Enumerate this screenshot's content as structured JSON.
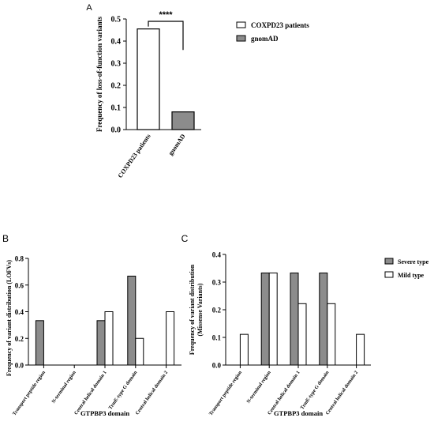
{
  "colors": {
    "gray": "#8c8c8c",
    "white": "#ffffff",
    "ink": "#000000"
  },
  "chart_data": [
    {
      "panel": "A",
      "type": "bar",
      "categories": [
        "COXPD23 patients",
        "gnomAD"
      ],
      "values": [
        0.455,
        0.08
      ],
      "bar_colors": [
        "white",
        "gray"
      ],
      "ylabel": "Frequency of loss-of-function variants",
      "xlabel": "",
      "ylim": [
        0,
        0.5
      ],
      "yticks": [
        "0.0",
        "0.1",
        "0.2",
        "0.3",
        "0.4",
        "0.5"
      ],
      "significance": "****",
      "legend": {
        "placement": "right",
        "entries": [
          {
            "name": "COXPD23 patients",
            "color": "white"
          },
          {
            "name": "gnomAD",
            "color": "gray"
          }
        ]
      }
    },
    {
      "panel": "B",
      "type": "bar",
      "categories": [
        "Transport peptide region",
        "N-terminal region",
        "Central helical domain 1",
        "TrmE-type G domain",
        "Central helical domain 2"
      ],
      "series": [
        {
          "values": [
            0.333,
            0,
            0.333,
            0.667,
            0
          ],
          "color": "gray"
        },
        {
          "values": [
            0,
            0,
            0.4,
            0.2,
            0.4
          ],
          "color": "white"
        }
      ],
      "xlabel": "GTPBP3 domain",
      "ylabel": "Frequency of variant distribution (LOFVs)",
      "ylim": [
        0,
        0.8
      ],
      "yticks": [
        "0.0",
        "0.2",
        "0.4",
        "0.6",
        "0.8"
      ]
    },
    {
      "panel": "C",
      "type": "bar",
      "categories": [
        "Transport peptide region",
        "N-terminal region",
        "Central helical domain 1",
        "TrmE-type G domain",
        "Central helical domain 2"
      ],
      "series": [
        {
          "name": "Severe type",
          "values": [
            0,
            0.333,
            0.333,
            0.333,
            0
          ],
          "color": "gray"
        },
        {
          "name": "Mild type",
          "values": [
            0.111,
            0.333,
            0.222,
            0.222,
            0.111
          ],
          "color": "white"
        }
      ],
      "xlabel": "GTPBP3 domain",
      "ylabel": "Frequency of variant distribution",
      "ylabel2": "(Missense Variants)",
      "ylim": [
        0,
        0.4
      ],
      "yticks": [
        "0.0",
        "0.1",
        "0.2",
        "0.3",
        "0.4"
      ],
      "legend": {
        "placement": "right",
        "entries": [
          {
            "name": "Severe type",
            "color": "gray"
          },
          {
            "name": "Mild type",
            "color": "white"
          }
        ]
      }
    }
  ]
}
